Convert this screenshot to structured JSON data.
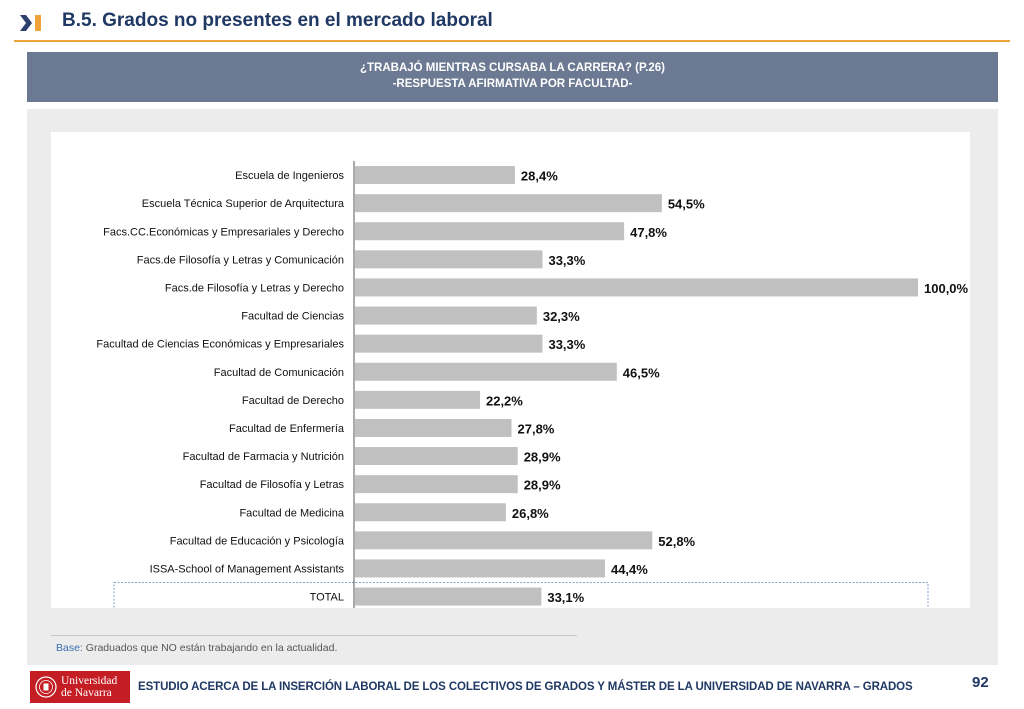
{
  "header": {
    "title": "B.5. Grados no presentes en el mercado laboral",
    "accent_color": "#f0a23a",
    "title_color": "#1f3864"
  },
  "chart_banner": {
    "line1": "¿TRABAJÓ MIENTRAS CURSABA LA CARRERA? (P.26)",
    "line2": "-RESPUESTA AFIRMATIVA POR FACULTAD-"
  },
  "chart_data": {
    "type": "bar",
    "orientation": "horizontal",
    "categories": [
      "Escuela de Ingenieros",
      "Escuela Técnica Superior de Arquitectura",
      "Facs.CC.Económicas y Empresariales y Derecho",
      "Facs.de Filosofía y Letras y Comunicación",
      "Facs.de Filosofía y Letras y Derecho",
      "Facultad de Ciencias",
      "Facultad de Ciencias Económicas y Empresariales",
      "Facultad de Comunicación",
      "Facultad de Derecho",
      "Facultad de Enfermería",
      "Facultad de Farmacia y Nutrición",
      "Facultad de Filosofía y Letras",
      "Facultad de Medicina",
      "Facultad de Educación y Psicología",
      "ISSA-School of Management Assistants",
      "TOTAL"
    ],
    "values": [
      28.4,
      54.5,
      47.8,
      33.3,
      100.0,
      32.3,
      33.3,
      46.5,
      22.2,
      27.8,
      28.9,
      28.9,
      26.8,
      52.8,
      44.4,
      33.1
    ],
    "value_labels": [
      "28,4%",
      "54,5%",
      "47,8%",
      "33,3%",
      "100,0%",
      "32,3%",
      "33,3%",
      "46,5%",
      "22,2%",
      "27,8%",
      "28,9%",
      "28,9%",
      "26,8%",
      "52,8%",
      "44,4%",
      "33,1%"
    ],
    "xlim": [
      0,
      100
    ],
    "grid": false,
    "bar_color": "#c0c0c0",
    "highlighted_category": "TOTAL"
  },
  "base_note": {
    "label": "Base:",
    "text": "Graduados que NO están trabajando en la actualidad."
  },
  "footer": {
    "logo_line1": "Universidad",
    "logo_line2": "de Navarra",
    "logo_color": "#c41e24",
    "text": "ESTUDIO ACERCA DE LA INSERCIÓN LABORAL DE LOS COLECTIVOS DE GRADOS Y MÁSTER DE LA UNIVERSIDAD DE NAVARRA – GRADOS",
    "page_number": "92"
  }
}
